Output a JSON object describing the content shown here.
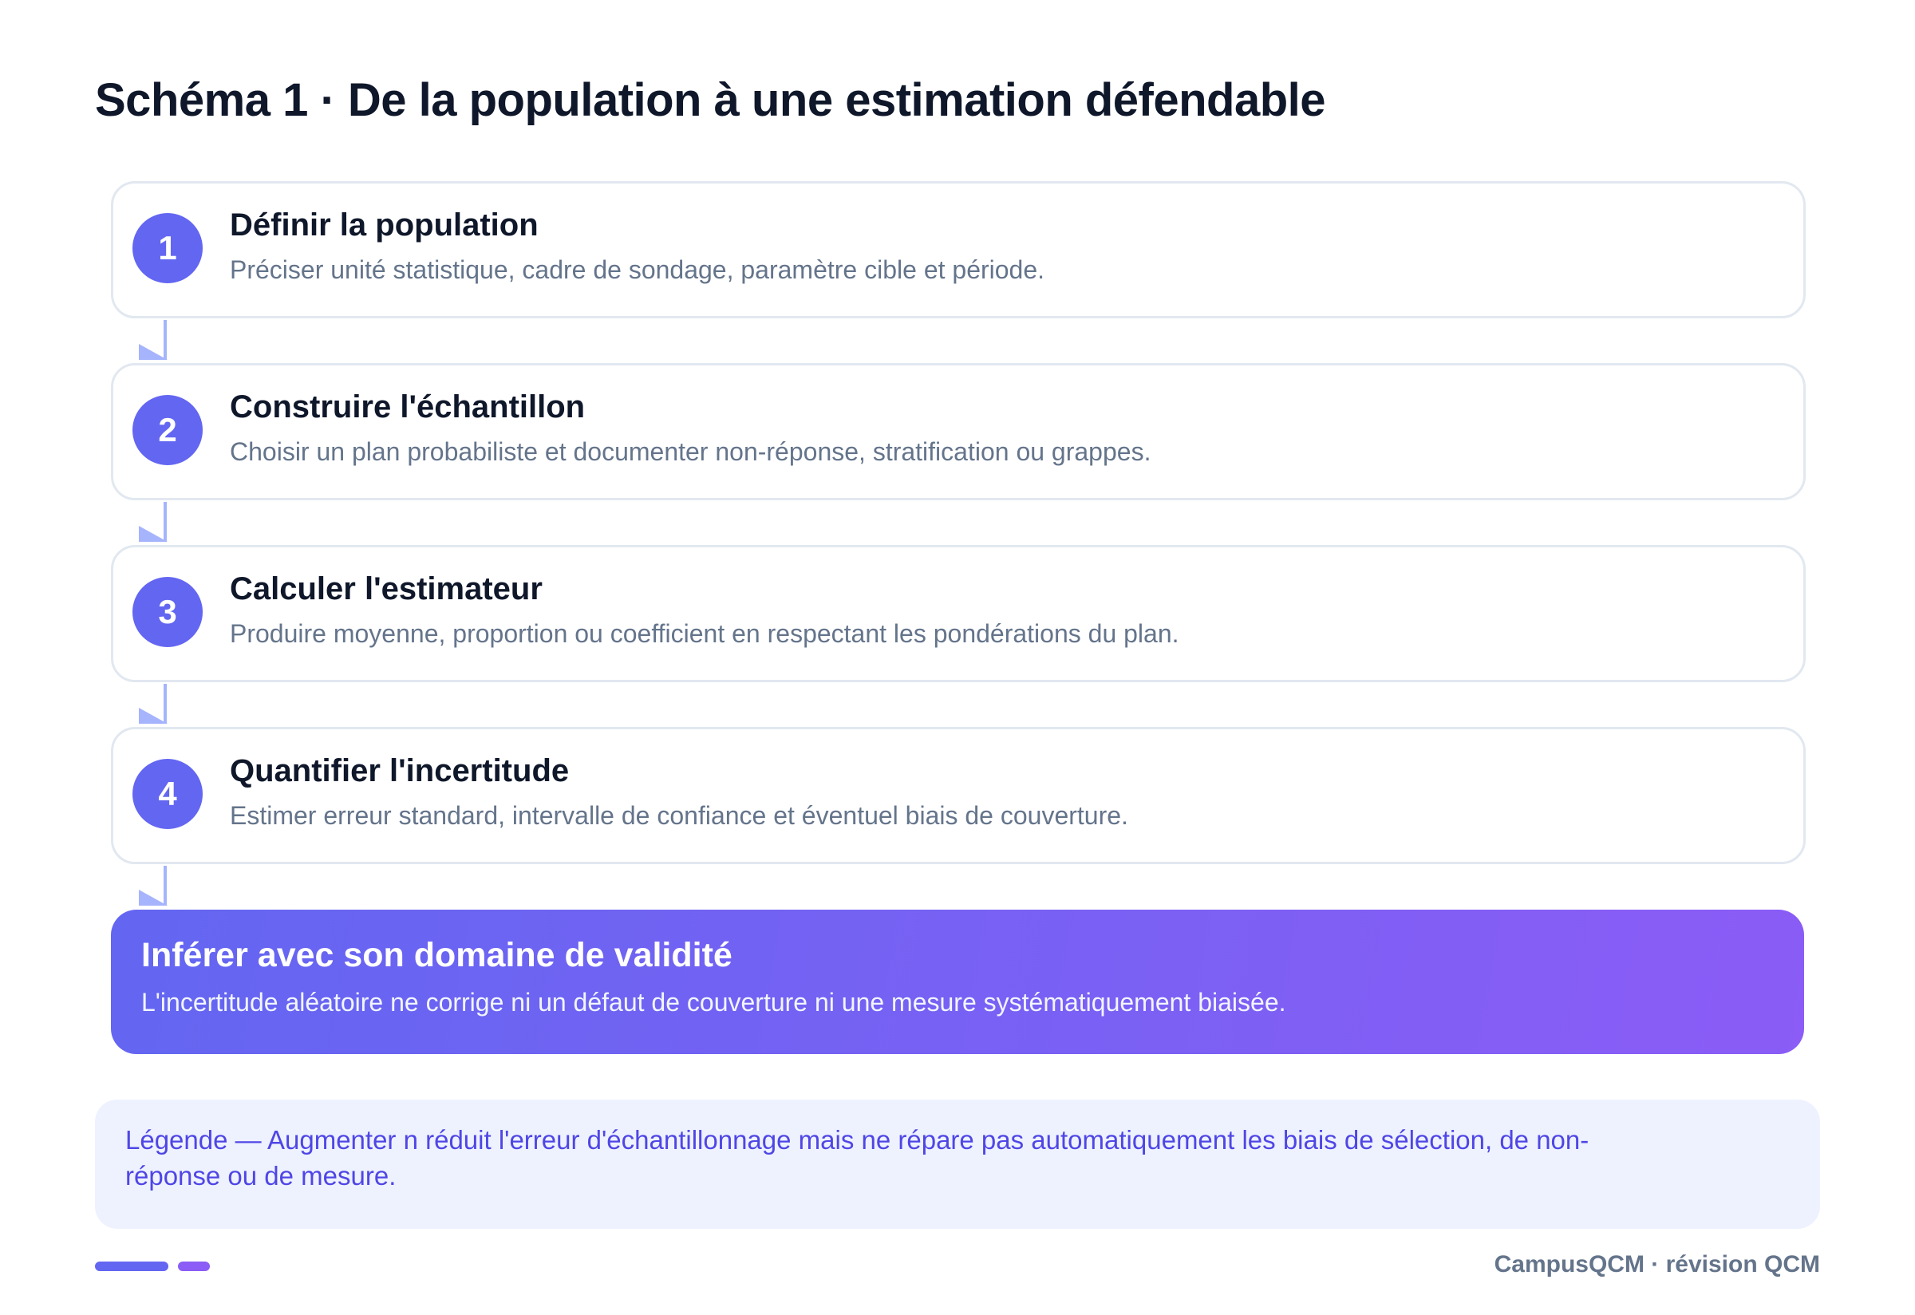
{
  "header": {
    "title": "Schéma 1 · De la population à une estimation défendable"
  },
  "steps": [
    {
      "number": "1",
      "title": "Définir la population",
      "description": "Préciser unité statistique, cadre de sondage, paramètre cible et période."
    },
    {
      "number": "2",
      "title": "Construire l'échantillon",
      "description": "Choisir un plan probabiliste et documenter non-réponse, stratification ou grappes."
    },
    {
      "number": "3",
      "title": "Calculer l'estimateur",
      "description": "Produire moyenne, proportion ou coefficient en respectant les pondérations du plan."
    },
    {
      "number": "4",
      "title": "Quantifier l'incertitude",
      "description": "Estimer erreur standard, intervalle de confiance et éventuel biais de couverture."
    }
  ],
  "conclusion": {
    "title": "Inférer avec son domaine de validité",
    "text": "L'incertitude aléatoire ne corrige ni un défaut de couverture ni une mesure systématiquement biaisée."
  },
  "legend": {
    "text": "Légende — Augmenter n réduit l'erreur d'échantillonnage mais ne répare pas automatiquement les biais de sélection, de non-réponse ou de mesure."
  },
  "footer": {
    "brand": "CampusQCM · révision QCM"
  }
}
